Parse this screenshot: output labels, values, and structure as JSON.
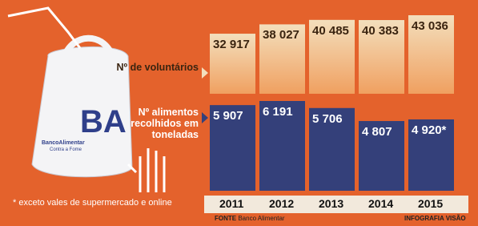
{
  "chart_data": {
    "type": "bar",
    "categories": [
      "2011",
      "2012",
      "2013",
      "2014",
      "2015"
    ],
    "series": [
      {
        "name": "Nº de voluntários",
        "color": "#f3dfbd",
        "values": [
          32917,
          38027,
          40485,
          40383,
          43036
        ],
        "value_labels": [
          "32 917",
          "38 027",
          "40 485",
          "40 383",
          "43 036"
        ]
      },
      {
        "name": "Nº alimentos recolhidos em toneladas",
        "color": "#34407a",
        "values": [
          5907,
          6191,
          5706,
          4807,
          4920
        ],
        "value_labels": [
          "5 907",
          "6 191",
          "5 706",
          "4 807",
          "4 920*"
        ]
      }
    ],
    "footnote": "* exceto vales de supermercado e online",
    "source": {
      "label": "FONTE",
      "text": "Banco Alimentar"
    },
    "credit": "INFOGRAFIA VISÃO",
    "logo": {
      "name": "BancoAlimentar",
      "tagline": "Contra a Fome"
    }
  }
}
